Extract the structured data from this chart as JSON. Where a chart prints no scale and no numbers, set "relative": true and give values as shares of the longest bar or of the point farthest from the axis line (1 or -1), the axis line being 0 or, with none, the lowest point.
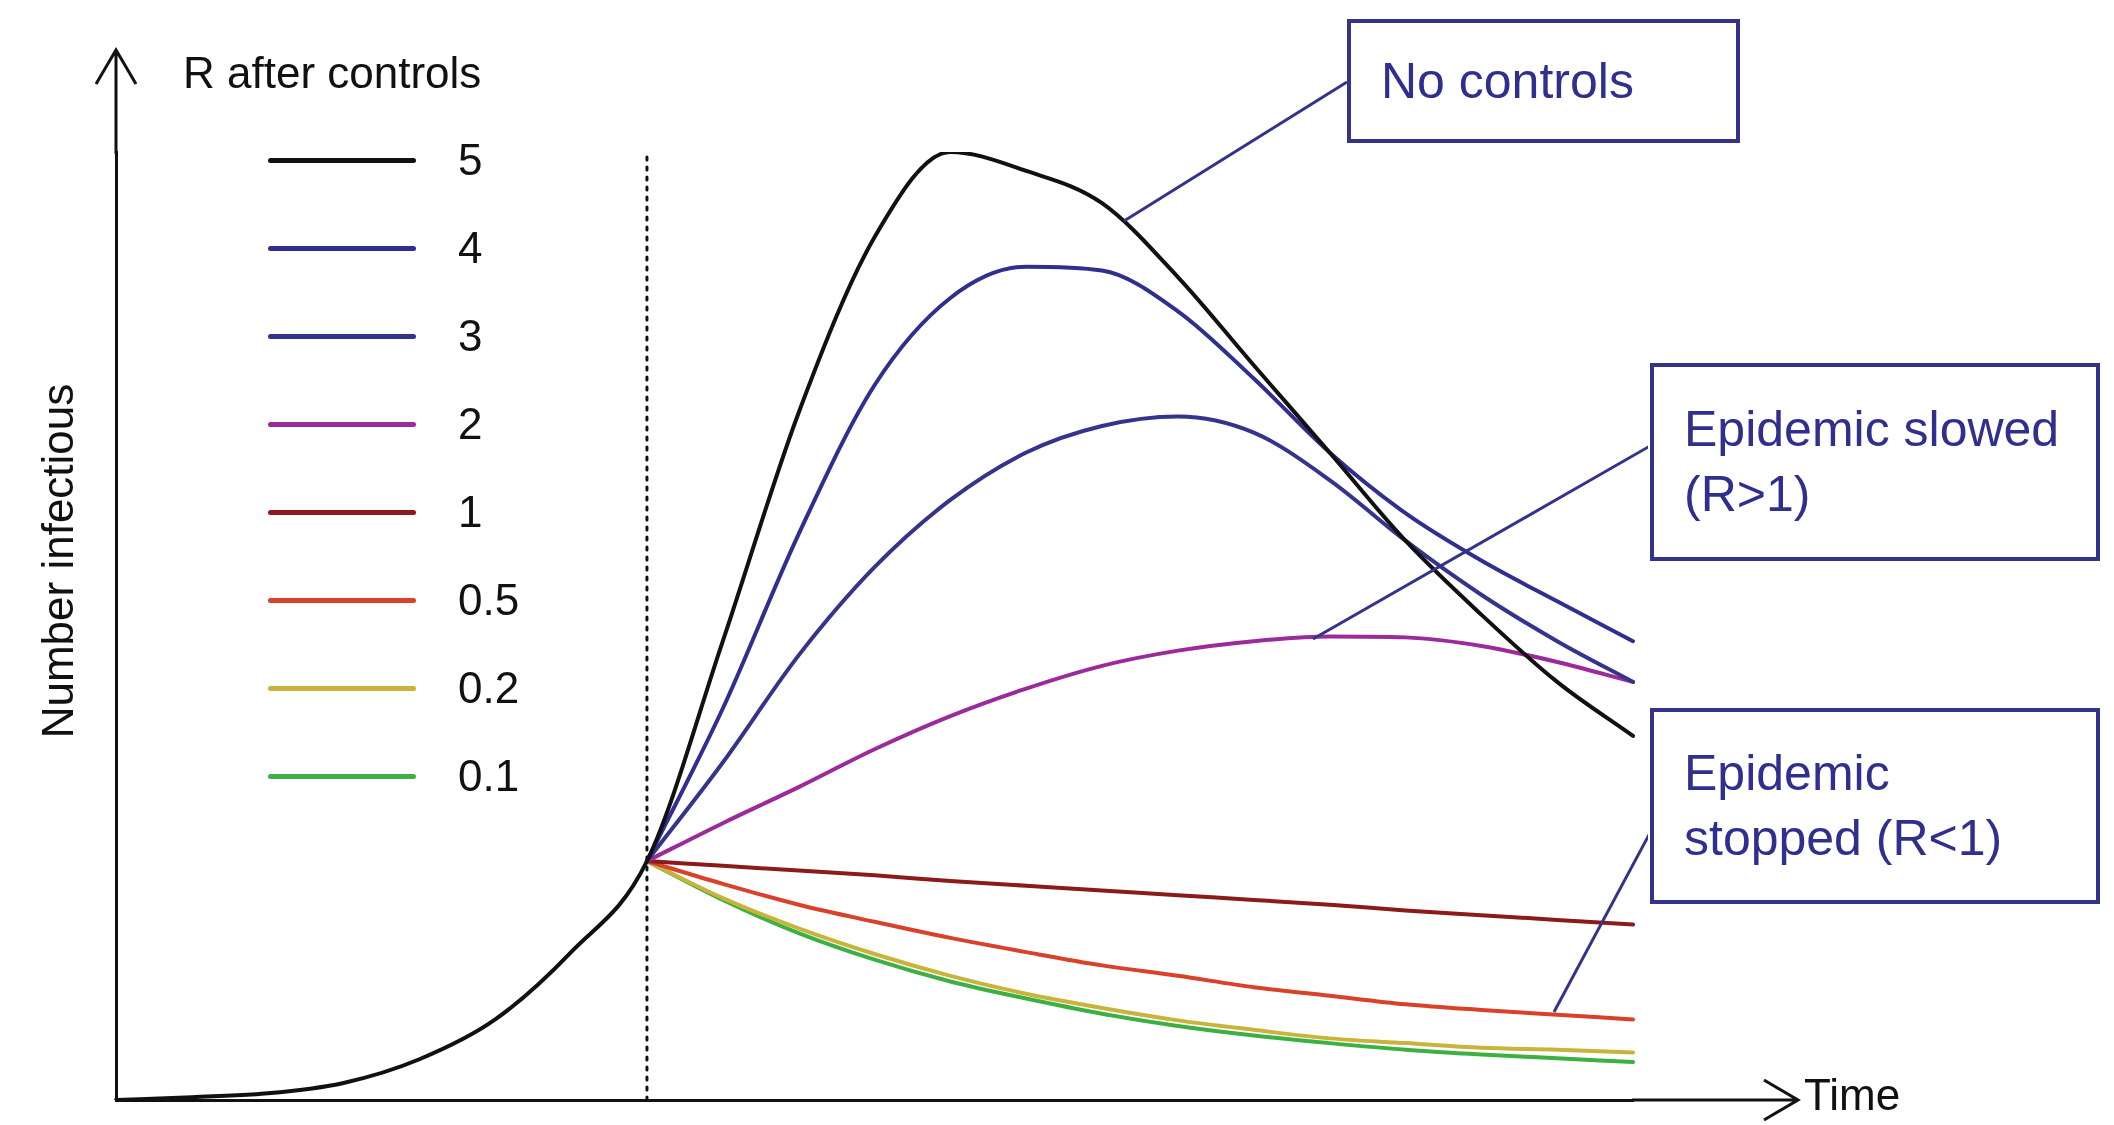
{
  "chart_data": {
    "type": "line",
    "relative": true,
    "ylabel": "Number infectious",
    "xlabel": "Time",
    "legend_title": "R after controls",
    "legend": "top left",
    "grid": false,
    "marker": "none",
    "line_style": "solid",
    "categories": [
      null,
      null,
      null,
      null,
      null,
      null,
      null,
      null,
      null,
      null,
      null,
      null,
      null,
      null,
      null,
      null,
      null,
      null,
      null,
      null,
      null
    ],
    "series": [
      {
        "name": "5",
        "color": "#111111",
        "values": [
          0,
          0.003,
          0.007,
          0.018,
          0.043,
          0.085,
          0.156,
          0.252,
          0.484,
          0.725,
          0.91,
          1,
          0.98,
          0.946,
          0.868,
          0.775,
          0.683,
          0.59,
          0.512,
          0.441,
          0.384
        ]
      },
      {
        "name": "4",
        "color": "#2f2f8f",
        "values": [
          null,
          null,
          null,
          null,
          null,
          null,
          null,
          0.252,
          0.413,
          0.597,
          0.754,
          0.846,
          0.879,
          0.875,
          0.832,
          0.761,
          0.683,
          0.619,
          0.569,
          0.526,
          0.484
        ]
      },
      {
        "name": "3",
        "color": "#34348c",
        "values": [
          null,
          null,
          null,
          null,
          null,
          null,
          null,
          0.252,
          0.356,
          0.469,
          0.562,
          0.633,
          0.683,
          0.711,
          0.721,
          0.704,
          0.654,
          0.59,
          0.533,
          0.484,
          0.441
        ]
      },
      {
        "name": "2",
        "color": "#9b2a9b",
        "values": [
          null,
          null,
          null,
          null,
          null,
          null,
          null,
          0.252,
          0.292,
          0.33,
          0.37,
          0.405,
          0.434,
          0.458,
          0.474,
          0.484,
          0.489,
          0.488,
          0.479,
          0.462,
          0.441
        ]
      },
      {
        "name": "1",
        "color": "#8b1a1a",
        "values": [
          null,
          null,
          null,
          null,
          null,
          null,
          null,
          0.252,
          0.247,
          0.242,
          0.237,
          0.231,
          0.226,
          0.221,
          0.216,
          0.211,
          0.206,
          0.2,
          0.195,
          0.19,
          0.185
        ]
      },
      {
        "name": "0.5",
        "color": "#d9412b",
        "values": [
          null,
          null,
          null,
          null,
          null,
          null,
          null,
          0.252,
          0.228,
          0.206,
          0.188,
          0.171,
          0.156,
          0.142,
          0.131,
          0.119,
          0.11,
          0.101,
          0.095,
          0.09,
          0.085
        ]
      },
      {
        "name": "0.2",
        "color": "#c8b43a",
        "values": [
          null,
          null,
          null,
          null,
          null,
          null,
          null,
          0.252,
          0.213,
          0.181,
          0.154,
          0.131,
          0.112,
          0.097,
          0.084,
          0.074,
          0.065,
          0.06,
          0.055,
          0.053,
          0.05
        ]
      },
      {
        "name": "0.1",
        "color": "#3cb043",
        "values": [
          null,
          null,
          null,
          null,
          null,
          null,
          null,
          0.252,
          0.211,
          0.176,
          0.148,
          0.125,
          0.107,
          0.091,
          0.078,
          0.068,
          0.06,
          0.053,
          0.048,
          0.044,
          0.04
        ]
      }
    ],
    "annotations": [
      "No controls",
      "Epidemic slowed (R>1)",
      "Epidemic stopped (R<1)"
    ]
  }
}
